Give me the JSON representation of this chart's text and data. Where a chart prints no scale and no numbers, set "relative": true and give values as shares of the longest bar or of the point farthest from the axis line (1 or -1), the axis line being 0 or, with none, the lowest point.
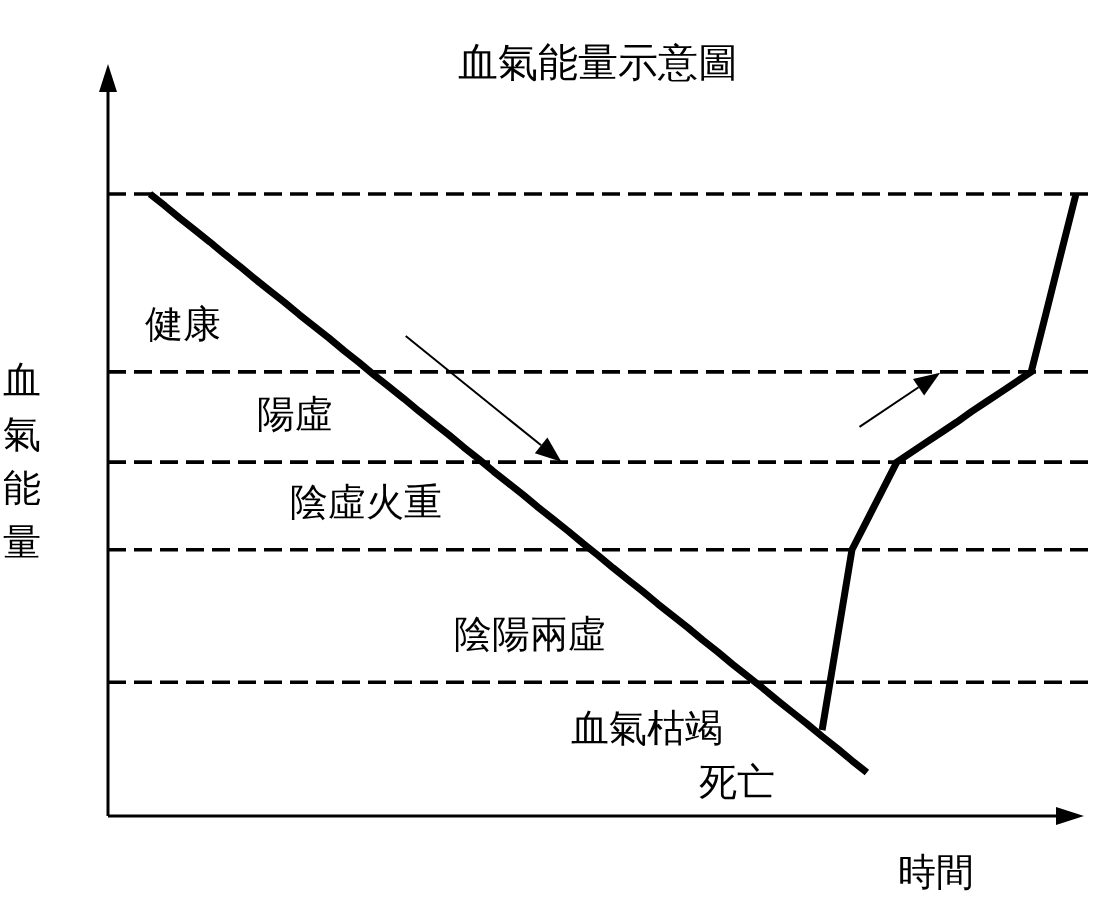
{
  "chart_data": {
    "type": "line",
    "title": "血氣能量示意圖",
    "xlabel": "時間",
    "ylabel": "血氣能量",
    "relative": true,
    "categories": [
      null,
      null,
      null,
      null,
      null,
      null,
      null,
      null,
      null,
      null,
      null,
      null,
      null,
      null,
      null,
      null,
      null,
      null,
      null,
      null,
      null,
      null,
      null,
      null,
      null,
      null,
      null,
      null,
      null,
      null,
      null,
      null,
      null,
      null,
      null,
      null,
      null,
      null,
      null,
      null,
      null,
      null,
      null,
      null,
      null,
      null,
      null,
      null,
      null,
      null,
      null,
      null,
      null,
      null,
      null,
      null,
      null,
      null,
      null,
      null,
      null,
      null,
      null
    ],
    "series": [
      {
        "color": "#000000",
        "values": [
          1.0,
          0.981,
          0.961,
          0.942,
          0.923,
          0.903,
          0.884,
          0.864,
          0.845,
          0.826,
          0.806,
          0.787,
          0.768,
          0.748,
          0.729,
          0.709,
          0.69,
          0.671,
          0.651,
          0.632,
          0.613,
          0.593,
          0.574,
          0.554,
          0.535,
          0.516,
          0.496,
          0.477,
          0.458,
          0.438,
          0.419,
          0.399,
          0.38,
          0.361,
          0.341,
          0.322,
          0.303,
          0.283,
          0.264,
          0.244,
          0.225,
          0.206,
          0.186,
          0.167,
          0.148,
          0.128,
          0.109,
          0.089,
          0.07,
          null,
          null,
          null,
          null,
          null,
          null,
          null,
          null,
          null,
          null,
          null,
          null,
          null,
          null
        ]
      },
      {
        "color": "#000000",
        "values": [
          null,
          null,
          null,
          null,
          null,
          null,
          null,
          null,
          null,
          null,
          null,
          null,
          null,
          null,
          null,
          null,
          null,
          null,
          null,
          null,
          null,
          null,
          null,
          null,
          null,
          null,
          null,
          null,
          null,
          null,
          null,
          null,
          null,
          null,
          null,
          null,
          null,
          null,
          null,
          null,
          null,
          null,
          null,
          null,
          null,
          0.138,
          0.283,
          0.428,
          0.475,
          0.522,
          0.569,
          0.585,
          0.601,
          0.617,
          0.633,
          0.65,
          0.666,
          0.682,
          0.698,
          0.714,
          0.809,
          0.905,
          1.0
        ]
      }
    ],
    "ref_lines": [
      {
        "axis": "y",
        "value": 1.0,
        "color": "#000000",
        "line_style": "dashed"
      },
      {
        "axis": "y",
        "value": 0.714,
        "color": "#000000",
        "line_style": "dashed"
      },
      {
        "axis": "y",
        "value": 0.569,
        "color": "#000000",
        "line_style": "dashed"
      },
      {
        "axis": "y",
        "value": 0.428,
        "color": "#000000",
        "line_style": "dashed"
      },
      {
        "axis": "y",
        "value": 0.215,
        "color": "#000000",
        "line_style": "dashed"
      }
    ],
    "annotations": [
      "健康",
      "陽虛",
      "陰虛火重",
      "陰陽兩虛",
      "血氣枯竭",
      "死亡"
    ]
  }
}
